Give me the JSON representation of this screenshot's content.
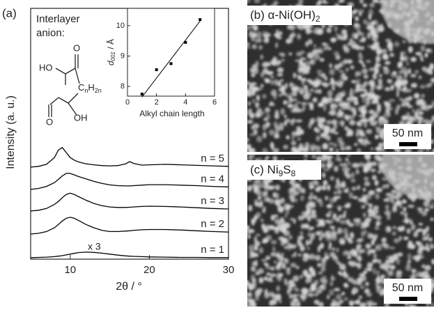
{
  "chart_data": [
    {
      "type": "line",
      "panel_label": "(a)",
      "xlabel": "2θ / °",
      "ylabel": "Intensity (a. u.)",
      "annotation_lines": [
        "Interlayer",
        "anion:"
      ],
      "scale_note": "x 3",
      "molecule": {
        "top_left": "HO",
        "top_right": "O",
        "chain": [
          "C",
          "n",
          "H",
          "2n"
        ],
        "bottom_left": "O",
        "bottom_right": "OH"
      },
      "xlim": [
        5,
        30
      ],
      "xticks": [
        10,
        20,
        30
      ],
      "ylim": [
        0,
        100
      ],
      "color": "#000000",
      "x": [
        5,
        6,
        7,
        8,
        8.5,
        9,
        9.5,
        10,
        10.5,
        11,
        12,
        13,
        14,
        15,
        16,
        17,
        17.5,
        18,
        19,
        20,
        22,
        24,
        26,
        28,
        30
      ],
      "series": [
        {
          "name": "n = 5",
          "values": [
            36.7,
            37,
            37.8,
            40.5,
            43.5,
            44.5,
            42.5,
            40.5,
            39.5,
            38.8,
            38,
            37.6,
            37.3,
            37.2,
            37.3,
            38,
            38.9,
            38.2,
            37.5,
            37.6,
            37.8,
            37.6,
            37.4,
            37.2,
            37
          ]
        },
        {
          "name": "n = 4",
          "values": [
            27.8,
            28.2,
            29,
            30.5,
            31.8,
            33.2,
            34.2,
            34.2,
            33.6,
            33,
            32,
            31,
            30.2,
            29.6,
            29.3,
            29.2,
            29.2,
            29.3,
            29.5,
            29.7,
            29.7,
            29.5,
            29.3,
            29,
            28.8
          ]
        },
        {
          "name": "n = 3",
          "values": [
            19.2,
            19.5,
            20.2,
            21.8,
            23,
            24.5,
            25.8,
            26.3,
            25.8,
            25,
            23.5,
            22.2,
            21.3,
            20.8,
            20.6,
            20.6,
            20.7,
            20.8,
            21,
            21.1,
            21,
            20.8,
            20.5,
            20.2,
            20
          ]
        },
        {
          "name": "n = 2",
          "values": [
            10,
            10.3,
            11,
            12.5,
            13.8,
            15.2,
            16.3,
            16.7,
            16.3,
            15.5,
            13.8,
            12.5,
            11.5,
            11,
            11,
            11.2,
            11.3,
            11.5,
            11.7,
            11.8,
            11.8,
            11.6,
            11.3,
            11,
            10.8
          ]
        },
        {
          "name": "n = 1",
          "values": [
            0.6,
            0.7,
            0.8,
            1,
            1.2,
            1.4,
            1.7,
            2,
            2.3,
            2.6,
            2.8,
            2.7,
            2.4,
            2,
            1.6,
            1.3,
            1.2,
            1.1,
            1,
            0.9,
            0.8,
            0.7,
            0.7,
            0.6,
            0.6
          ]
        }
      ]
    },
    {
      "type": "scatter",
      "xlabel": "Alkyl chain length",
      "ylabel_parts": [
        "d",
        "001",
        " / Å"
      ],
      "xlim": [
        0,
        6
      ],
      "xticks": [
        0,
        2,
        4,
        6
      ],
      "ylim": [
        7.68,
        10.57
      ],
      "yticks": [
        8,
        9,
        10
      ],
      "color": "#000000",
      "x": [
        1,
        2,
        3,
        4,
        5
      ],
      "values": [
        7.75,
        8.55,
        8.75,
        9.45,
        10.2
      ],
      "fit": {
        "x": [
          1,
          5
        ],
        "values": [
          7.65,
          10.15
        ]
      }
    }
  ],
  "panels": [
    {
      "label_parts": [
        "(b) α-Ni(OH)",
        "2"
      ],
      "scale_bar": "50 nm"
    },
    {
      "label_parts": [
        "(c) Ni",
        "9",
        "S",
        "8"
      ],
      "scale_bar": "50 nm"
    }
  ]
}
